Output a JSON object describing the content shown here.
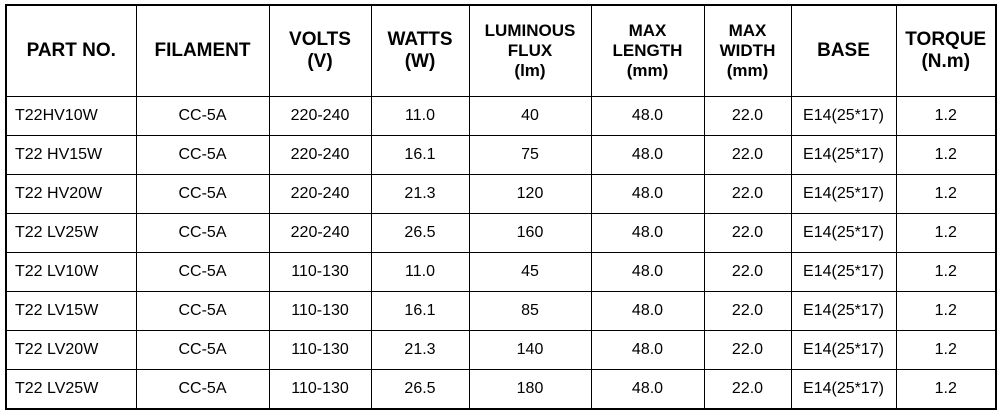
{
  "table": {
    "headers": [
      [
        "PART NO."
      ],
      [
        "FILAMENT"
      ],
      [
        "VOLTS",
        "(V)"
      ],
      [
        "WATTS",
        "(W)"
      ],
      [
        "LUMINOUS",
        "FLUX",
        "(lm)"
      ],
      [
        "MAX",
        "LENGTH",
        "(mm)"
      ],
      [
        "MAX",
        "WIDTH",
        "(mm)"
      ],
      [
        "BASE"
      ],
      [
        "TORQUE",
        "(N.m)"
      ]
    ],
    "rows": [
      [
        "T22HV10W",
        "CC-5A",
        "220-240",
        "11.0",
        "40",
        "48.0",
        "22.0",
        "E14(25*17)",
        "1.2"
      ],
      [
        "T22 HV15W",
        "CC-5A",
        "220-240",
        "16.1",
        "75",
        "48.0",
        "22.0",
        "E14(25*17)",
        "1.2"
      ],
      [
        "T22 HV20W",
        "CC-5A",
        "220-240",
        "21.3",
        "120",
        "48.0",
        "22.0",
        "E14(25*17)",
        "1.2"
      ],
      [
        "T22 LV25W",
        "CC-5A",
        "220-240",
        "26.5",
        "160",
        "48.0",
        "22.0",
        "E14(25*17)",
        "1.2"
      ],
      [
        "T22 LV10W",
        "CC-5A",
        "110-130",
        "11.0",
        "45",
        "48.0",
        "22.0",
        "E14(25*17)",
        "1.2"
      ],
      [
        "T22 LV15W",
        "CC-5A",
        "110-130",
        "16.1",
        "85",
        "48.0",
        "22.0",
        "E14(25*17)",
        "1.2"
      ],
      [
        "T22 LV20W",
        "CC-5A",
        "110-130",
        "21.3",
        "140",
        "48.0",
        "22.0",
        "E14(25*17)",
        "1.2"
      ],
      [
        "T22 LV25W",
        "CC-5A",
        "110-130",
        "26.5",
        "180",
        "48.0",
        "22.0",
        "E14(25*17)",
        "1.2"
      ]
    ]
  }
}
